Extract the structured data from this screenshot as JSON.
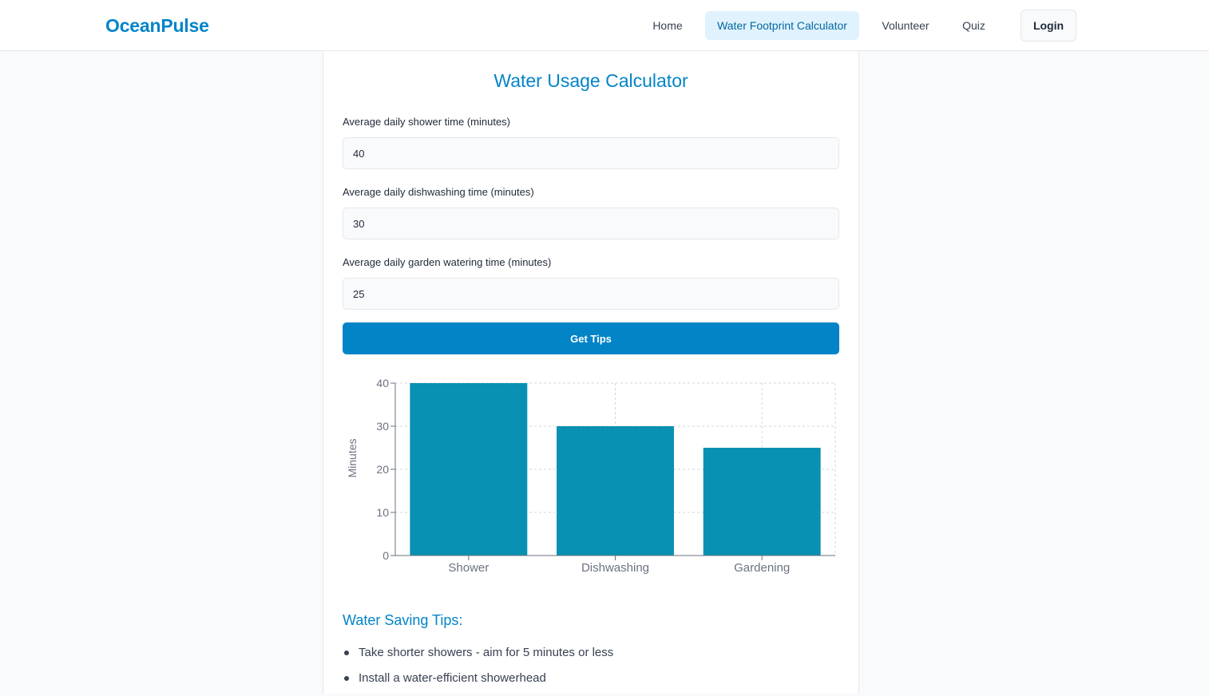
{
  "header": {
    "brand": "OceanPulse",
    "nav": [
      {
        "label": "Home",
        "active": false
      },
      {
        "label": "Water Footprint Calculator",
        "active": true
      },
      {
        "label": "Volunteer",
        "active": false
      },
      {
        "label": "Quiz",
        "active": false
      }
    ],
    "login_label": "Login"
  },
  "calculator": {
    "title": "Water Usage Calculator",
    "fields": [
      {
        "label": "Average daily shower time (minutes)",
        "value": "40"
      },
      {
        "label": "Average daily dishwashing time (minutes)",
        "value": "30"
      },
      {
        "label": "Average daily garden watering time (minutes)",
        "value": "25"
      }
    ],
    "button_label": "Get Tips"
  },
  "chart_data": {
    "type": "bar",
    "categories": [
      "Shower",
      "Dishwashing",
      "Gardening"
    ],
    "values": [
      40,
      30,
      25
    ],
    "title": "",
    "xlabel": "",
    "ylabel": "Minutes",
    "ylim": [
      0,
      40
    ],
    "yticks": [
      0,
      10,
      20,
      30,
      40
    ],
    "grid": true,
    "bar_color": "#0891b2"
  },
  "tips": {
    "heading": "Water Saving Tips:",
    "items": [
      "Take shorter showers - aim for 5 minutes or less",
      "Install a water-efficient showerhead"
    ]
  },
  "colors": {
    "accent": "#0284c7",
    "active_nav_bg": "#e0f2fe"
  }
}
